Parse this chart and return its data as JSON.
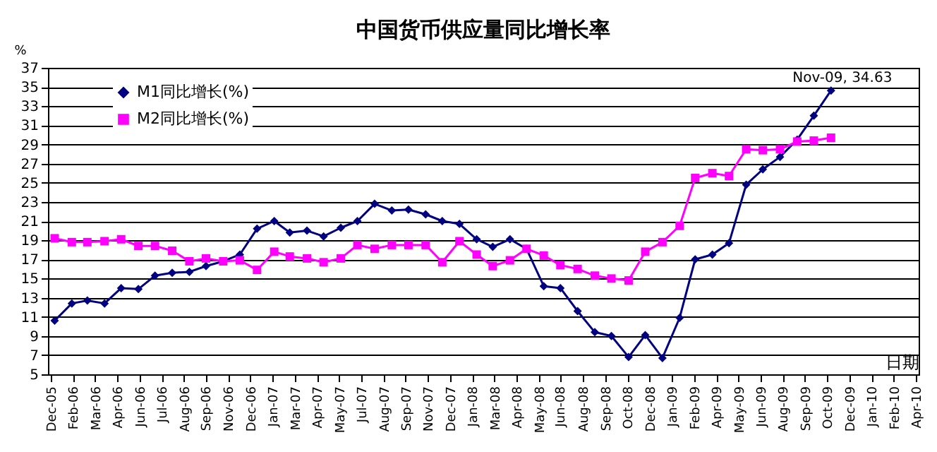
{
  "chart_data": {
    "type": "line",
    "title": "中国货币供应量同比增长率",
    "xlabel": "日期",
    "ylabel": "%",
    "x": [
      "2006-01",
      "2006-02",
      "2006-03",
      "2006-04",
      "2006-05",
      "2006-06",
      "2006-07",
      "2006-08",
      "2006-09",
      "2006-10",
      "2006-11",
      "2006-12",
      "2007-01",
      "2007-02",
      "2007-03",
      "2007-04",
      "2007-05",
      "2007-06",
      "2007-07",
      "2007-08",
      "2007-09",
      "2007-10",
      "2007-11",
      "2007-12",
      "2008-01",
      "2008-02",
      "2008-03",
      "2008-04",
      "2008-05",
      "2008-06",
      "2008-07",
      "2008-08",
      "2008-09",
      "2008-10",
      "2008-11",
      "2008-12",
      "2009-01",
      "2009-02",
      "2009-03",
      "2009-04",
      "2009-05",
      "2009-06",
      "2009-07",
      "2009-08",
      "2009-09",
      "2009-10",
      "2009-11"
    ],
    "series": [
      {
        "name": "M1同比增长(%)",
        "color": "#000080",
        "marker": "diamond",
        "values": [
          10.6,
          12.4,
          12.7,
          12.4,
          14.0,
          13.9,
          15.3,
          15.6,
          15.7,
          16.3,
          16.8,
          17.5,
          20.2,
          21.0,
          19.8,
          20.0,
          19.4,
          20.3,
          21.0,
          22.8,
          22.1,
          22.2,
          21.7,
          21.0,
          20.7,
          19.1,
          18.3,
          19.1,
          18.1,
          14.2,
          14.0,
          11.6,
          9.4,
          9.0,
          6.8,
          9.1,
          6.7,
          10.9,
          17.0,
          17.5,
          18.7,
          24.8,
          26.4,
          27.7,
          29.5,
          32.0,
          34.63
        ]
      },
      {
        "name": "M2同比增长(%)",
        "color": "#ff00ff",
        "marker": "square",
        "values": [
          19.2,
          18.8,
          18.8,
          18.9,
          19.1,
          18.4,
          18.4,
          17.9,
          16.8,
          17.1,
          16.8,
          16.9,
          15.9,
          17.8,
          17.3,
          17.1,
          16.7,
          17.1,
          18.5,
          18.1,
          18.5,
          18.5,
          18.5,
          16.7,
          18.9,
          17.5,
          16.3,
          16.9,
          18.1,
          17.4,
          16.4,
          16.0,
          15.3,
          15.0,
          14.8,
          17.8,
          18.8,
          20.5,
          25.5,
          26.0,
          25.7,
          28.5,
          28.4,
          28.5,
          29.3,
          29.4,
          29.7
        ]
      }
    ],
    "xlim": [
      "2005-12-20",
      "2010-04-08"
    ],
    "xticks": [
      {
        "value": "2005-12-25",
        "label": "Dec-05"
      },
      {
        "value": "2006-02-03",
        "label": "Feb-06"
      },
      {
        "value": "2006-03-15",
        "label": "Mar-06"
      },
      {
        "value": "2006-04-24",
        "label": "Apr-06"
      },
      {
        "value": "2006-06-03",
        "label": "Jun-06"
      },
      {
        "value": "2006-07-13",
        "label": "Jul-06"
      },
      {
        "value": "2006-08-22",
        "label": "Aug-06"
      },
      {
        "value": "2006-09-30",
        "label": "Sep-06"
      },
      {
        "value": "2006-11-10",
        "label": "Nov-06"
      },
      {
        "value": "2006-12-20",
        "label": "Dec-06"
      },
      {
        "value": "2007-01-29",
        "label": "Jan-07"
      },
      {
        "value": "2007-03-10",
        "label": "Mar-07"
      },
      {
        "value": "2007-04-19",
        "label": "Apr-07"
      },
      {
        "value": "2007-05-29",
        "label": "May-07"
      },
      {
        "value": "2007-07-08",
        "label": "Jul-07"
      },
      {
        "value": "2007-08-17",
        "label": "Aug-07"
      },
      {
        "value": "2007-09-26",
        "label": "Sep-07"
      },
      {
        "value": "2007-11-05",
        "label": "Nov-07"
      },
      {
        "value": "2007-12-15",
        "label": "Dec-07"
      },
      {
        "value": "2008-01-24",
        "label": "Jan-08"
      },
      {
        "value": "2008-03-04",
        "label": "Mar-08"
      },
      {
        "value": "2008-04-13",
        "label": "Apr-08"
      },
      {
        "value": "2008-05-23",
        "label": "May-08"
      },
      {
        "value": "2008-06-30",
        "label": "Jun-08"
      },
      {
        "value": "2008-08-11",
        "label": "Aug-08"
      },
      {
        "value": "2008-09-20",
        "label": "Sep-08"
      },
      {
        "value": "2008-10-30",
        "label": "Oct-08"
      },
      {
        "value": "2008-12-09",
        "label": "Dec-08"
      },
      {
        "value": "2009-01-18",
        "label": "Jan-09"
      },
      {
        "value": "2009-02-27",
        "label": "Feb-09"
      },
      {
        "value": "2009-04-08",
        "label": "Apr-09"
      },
      {
        "value": "2009-05-18",
        "label": "May-09"
      },
      {
        "value": "2009-06-27",
        "label": "Jun-09"
      },
      {
        "value": "2009-08-06",
        "label": "Aug-09"
      },
      {
        "value": "2009-09-15",
        "label": "Sep-09"
      },
      {
        "value": "2009-10-25",
        "label": "Oct-09"
      },
      {
        "value": "2009-12-04",
        "label": "Dec-09"
      },
      {
        "value": "2010-01-13",
        "label": "Jan-10"
      },
      {
        "value": "2010-02-22",
        "label": "Feb-10"
      },
      {
        "value": "2010-04-03",
        "label": "Apr-10"
      }
    ],
    "ylim": [
      5,
      37
    ],
    "yticks": [
      5,
      7,
      9,
      11,
      13,
      15,
      17,
      19,
      21,
      23,
      25,
      27,
      29,
      31,
      33,
      35,
      37
    ],
    "grid": "y",
    "legend": "top left",
    "annotations": [
      {
        "text": "Nov-09, 34.63",
        "x": "2009-11",
        "y": 34.63
      }
    ]
  }
}
